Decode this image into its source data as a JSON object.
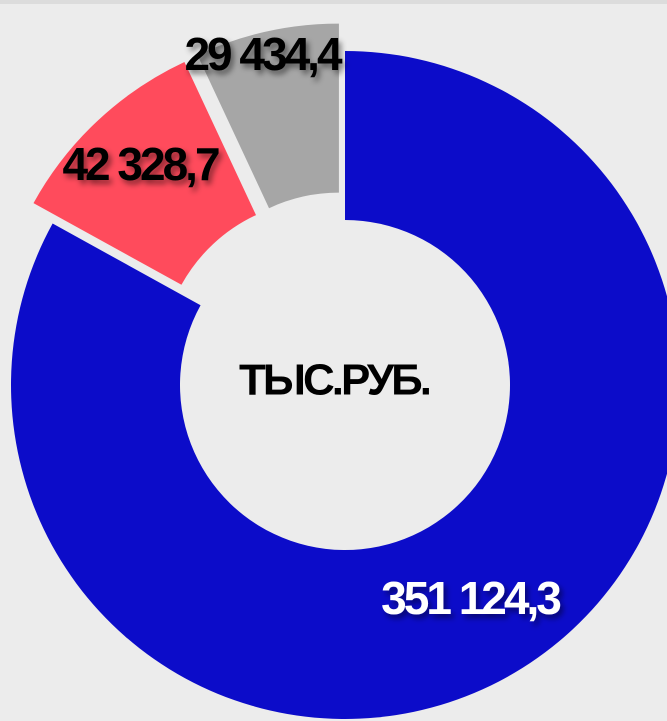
{
  "chart_data": {
    "type": "donut",
    "center_label": "ТЫС.РУБ.",
    "values": [
      351124.3,
      42328.7,
      29434.4
    ],
    "value_labels": [
      "351 124,3",
      "42 328,7",
      "29 434,4"
    ],
    "colors": [
      "#0c0cc9",
      "#ff4b5c",
      "#a6a6a6"
    ]
  }
}
